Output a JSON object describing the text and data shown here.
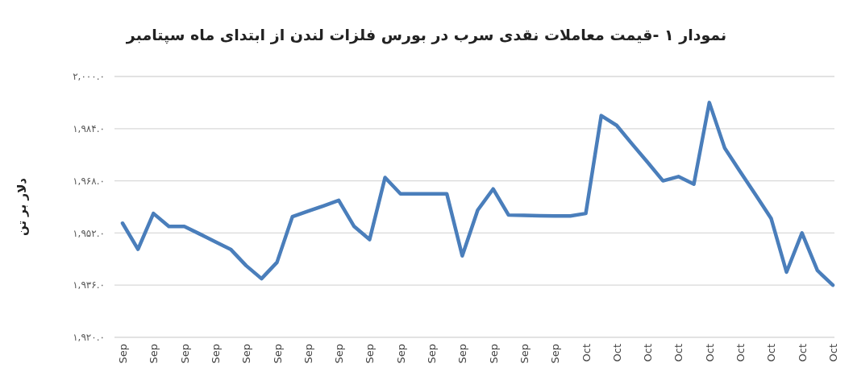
{
  "chart_data": {
    "type": "line",
    "title": "نمودار ۱ -قیمت معاملات نقدی سرب در بورس فلزات لندن از ابتدای ماه سپتامبر",
    "ylabel": "دلار بر تن",
    "categories": [
      "Sep",
      null,
      "Sep",
      null,
      "Sep",
      null,
      "Sep",
      null,
      "Sep",
      null,
      "Sep",
      null,
      "Sep",
      null,
      "Sep",
      null,
      "Sep",
      null,
      "Sep",
      null,
      "Sep",
      null,
      "Sep",
      null,
      "Sep",
      null,
      "Sep",
      null,
      "Sep",
      null,
      "Oct",
      null,
      "Oct",
      null,
      "Oct",
      null,
      "Oct",
      null,
      "Oct",
      null,
      "Oct",
      null,
      "Oct",
      null,
      "Oct",
      null,
      "Oct"
    ],
    "series": [
      {
        "color": "#4a7ebb",
        "values": [
          1955,
          1947,
          1958,
          1954,
          1954,
          1951.7,
          1949.3,
          1947,
          1942,
          1938,
          1943,
          1957,
          1958.7,
          1960.3,
          1962,
          1954,
          1950,
          1969,
          1964,
          1964,
          1964,
          1964,
          1945,
          1959,
          1965.5,
          1957.5,
          1957.4,
          1957.3,
          1957.2,
          1957.2,
          1958,
          1988,
          1985,
          1979.3,
          1973.7,
          1968,
          1969.3,
          1967,
          1992,
          1978,
          1970.8,
          1963.7,
          1956.5,
          1940,
          1952,
          1940.5,
          1936
        ]
      }
    ],
    "ylim": [
      1920,
      2000
    ],
    "yticks": [
      {
        "value": 1920,
        "label": "۱,۹۲۰.۰"
      },
      {
        "value": 1936,
        "label": "۱,۹۳۶.۰"
      },
      {
        "value": 1952,
        "label": "۱,۹۵۲.۰"
      },
      {
        "value": 1968,
        "label": "۱,۹۶۸.۰"
      },
      {
        "value": 1984,
        "label": "۱,۹۸۴.۰"
      },
      {
        "value": 2000,
        "label": "۲,۰۰۰.۰"
      }
    ],
    "grid": "y",
    "marker": "none",
    "line_style": "solid"
  }
}
